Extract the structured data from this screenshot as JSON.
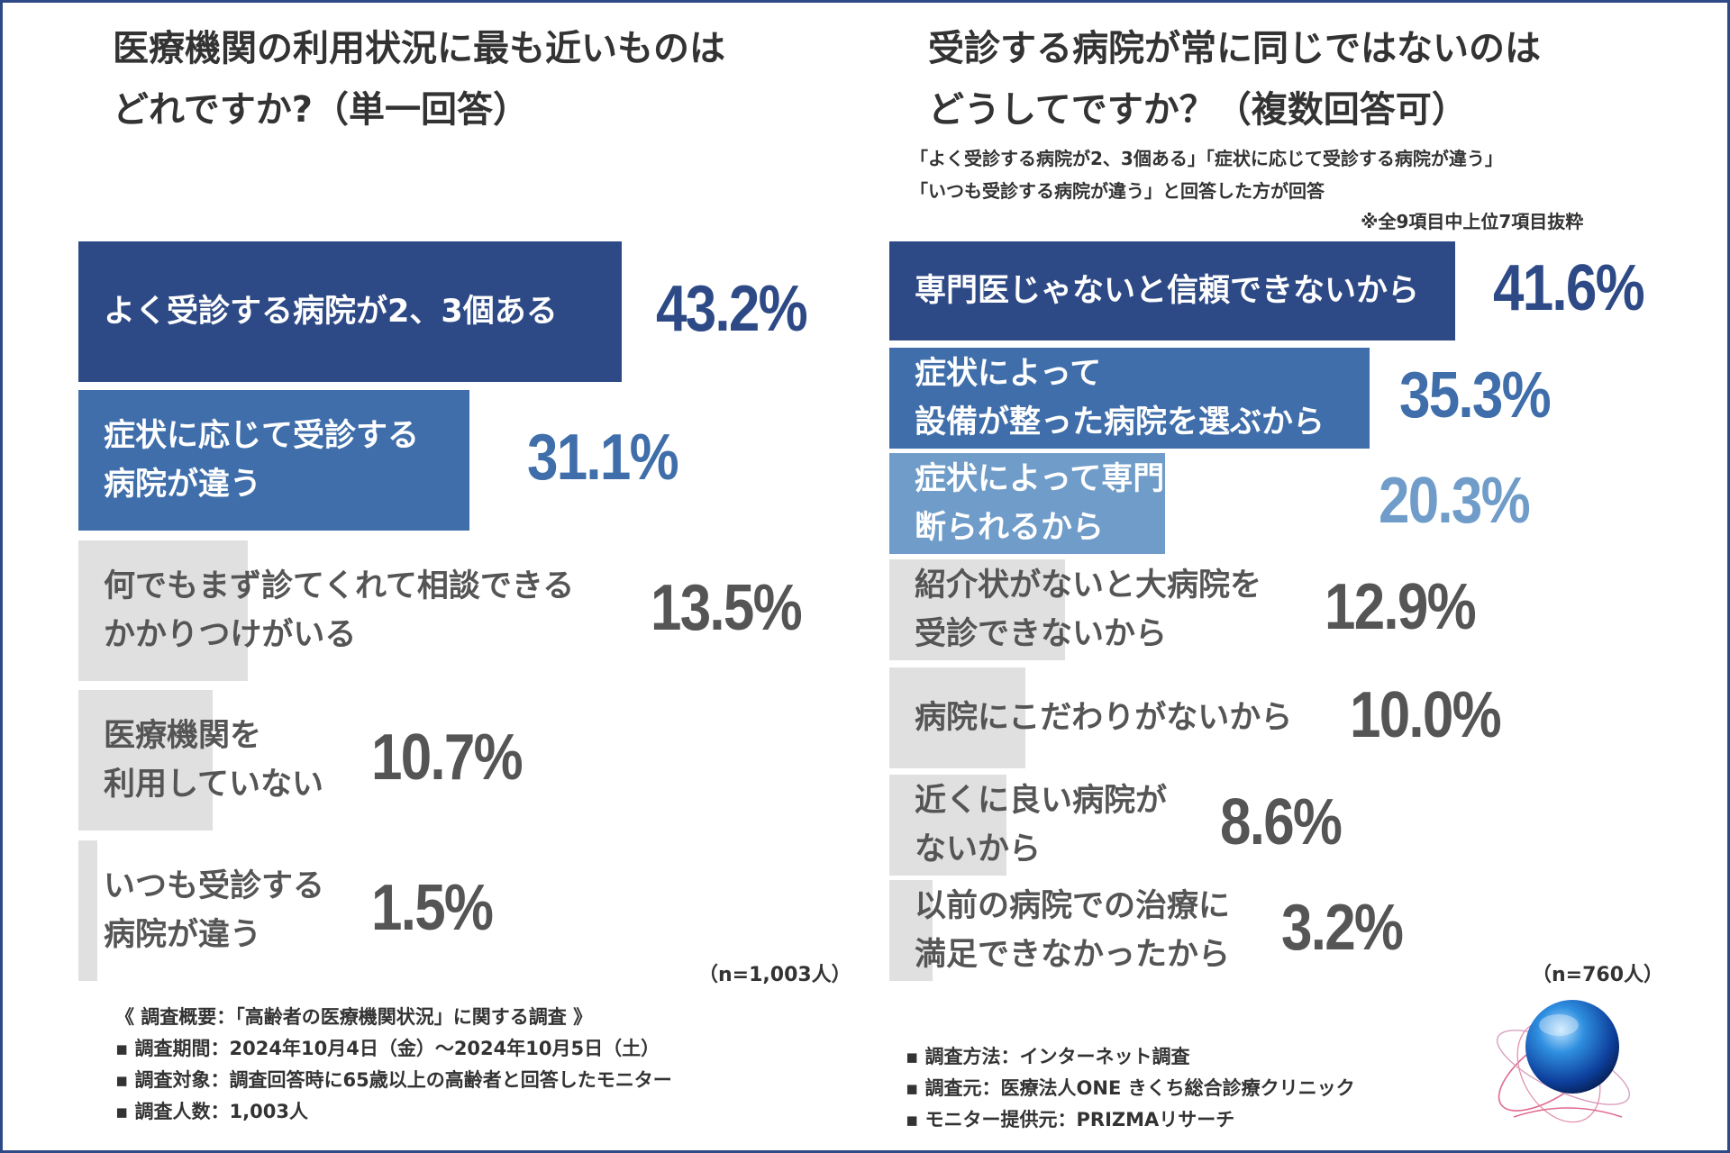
{
  "chart_data": [
    {
      "type": "bar",
      "orientation": "horizontal",
      "title_lines": [
        "医療機関の利用状況に最も近いものは",
        "どれですか?（単一回答）"
      ],
      "categories": [
        "よく受診する病院が2、3個ある",
        "症状に応じて受診する\n病院が違う",
        "何でもまず診てくれて相談できる\nかかりつけがいる",
        "医療機関を\n利用していない",
        "いつも受診する\n病院が違う"
      ],
      "values": [
        43.2,
        31.1,
        13.5,
        10.7,
        1.5
      ],
      "value_labels": [
        "43.2%",
        "31.1%",
        "13.5%",
        "10.7%",
        "1.5%"
      ],
      "colors": [
        "#2e4a86",
        "#3f6eaa",
        "#e0e0e0",
        "#e0e0e0",
        "#e0e0e0"
      ],
      "sample": "（n=1,003人）",
      "xlim": [
        0,
        43.2
      ]
    },
    {
      "type": "bar",
      "orientation": "horizontal",
      "title_lines": [
        "受診する病院が常に同じではないのは",
        "どうしてですか？（複数回答可）"
      ],
      "subtitle_lines": [
        "「よく受診する病院が2、3個ある」「症状に応じて受診する病院が違う」",
        "「いつも受診する病院が違う」と回答した方が回答"
      ],
      "annotation": "※全9項目中上位7項目抜粋",
      "categories": [
        "専門医じゃないと信頼できないから",
        "症状によって\n設備が整った病院を選ぶから",
        "症状によって専門じゃないと\n断られるから",
        "紹介状がないと大病院を\n受診できないから",
        "病院にこだわりがないから",
        "近くに良い病院が\nないから",
        "以前の病院での治療に\n満足できなかったから"
      ],
      "values": [
        41.6,
        35.3,
        20.3,
        12.9,
        10.0,
        8.6,
        3.2
      ],
      "value_labels": [
        "41.6%",
        "35.3%",
        "20.3%",
        "12.9%",
        "10.0%",
        "8.6%",
        "3.2%"
      ],
      "colors": [
        "#2e4a86",
        "#3f6eaa",
        "#6f9cc8",
        "#e0e0e0",
        "#e0e0e0",
        "#e0e0e0",
        "#e0e0e0"
      ],
      "sample": "（n=760人）",
      "xlim": [
        0,
        41.6
      ]
    }
  ],
  "footer_left": [
    "《 調査概要：「高齢者の医療機関状況」に関する調査 》",
    "▪ 調査期間：2024年10月4日（金）～2024年10月5日（土）",
    "▪ 調査対象：調査回答時に65歳以上の高齢者と回答したモニター",
    "▪ 調査人数：1,003人"
  ],
  "footer_right": [
    "▪ 調査方法：インターネット調査",
    "▪ 調査元：医療法人ONE きくち総合診療クリニック",
    "▪ モニター提供元：PRIZMAリサーチ"
  ],
  "logo_icon": "globe-orbit-icon"
}
